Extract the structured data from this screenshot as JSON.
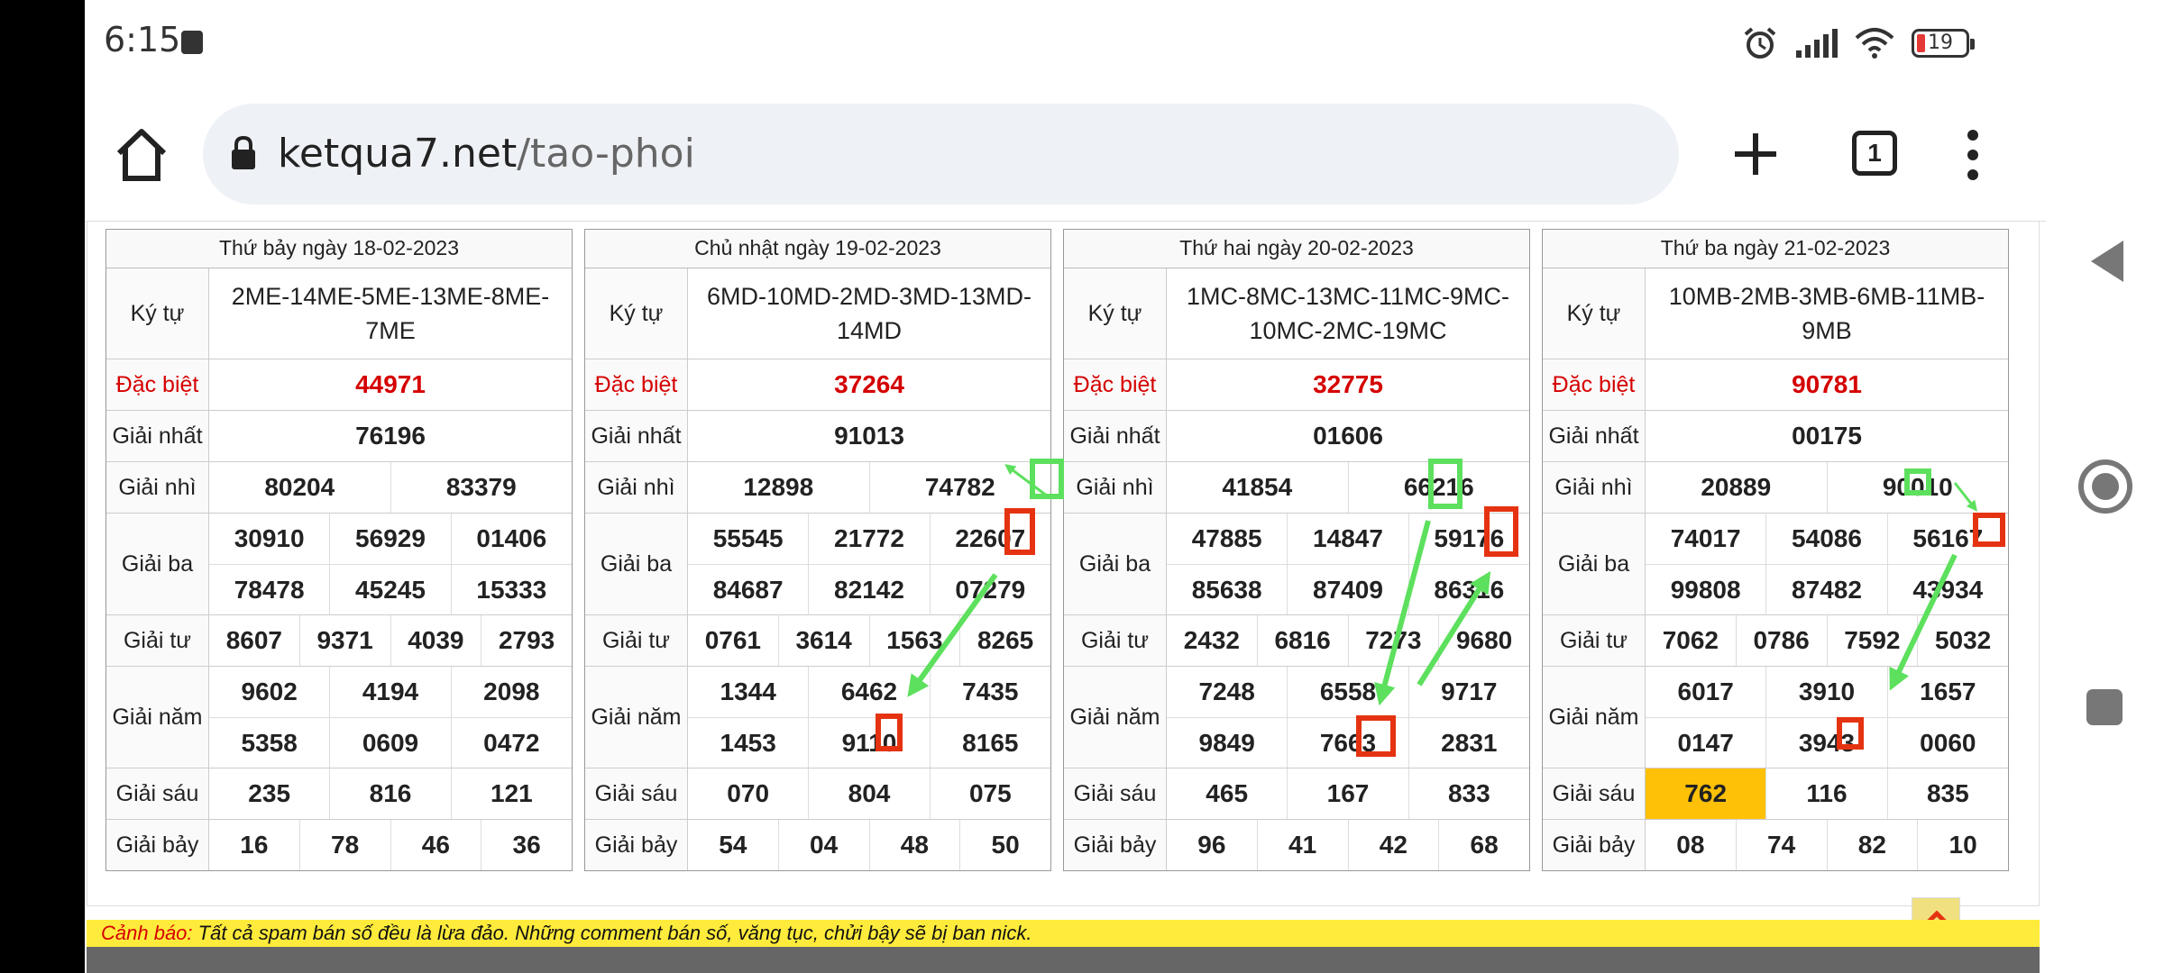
{
  "status": {
    "time": "6:15",
    "battery": "19"
  },
  "browser": {
    "url_domain": "ketqua7.net",
    "url_path": "/tao-phoi",
    "tab_count": "1"
  },
  "labels": {
    "code": "Ký tự",
    "special": "Đặc biệt",
    "first": "Giải nhất",
    "second": "Giải nhì",
    "third": "Giải ba",
    "fourth": "Giải tư",
    "fifth": "Giải năm",
    "sixth": "Giải sáu",
    "seventh": "Giải bảy"
  },
  "tables": [
    {
      "date": "Thứ bảy ngày 18-02-2023",
      "code": "2ME-14ME-5ME-13ME-8ME-7ME",
      "special": "44971",
      "first": "76196",
      "second": [
        "80204",
        "83379"
      ],
      "third": [
        "30910",
        "56929",
        "01406",
        "78478",
        "45245",
        "15333"
      ],
      "fourth": [
        "8607",
        "9371",
        "4039",
        "2793"
      ],
      "fifth": [
        "9602",
        "4194",
        "2098",
        "5358",
        "0609",
        "0472"
      ],
      "sixth": [
        "235",
        "816",
        "121"
      ],
      "seventh": [
        "16",
        "78",
        "46",
        "36"
      ]
    },
    {
      "date": "Chủ nhật ngày 19-02-2023",
      "code": "6MD-10MD-2MD-3MD-13MD-14MD",
      "special": "37264",
      "first": "91013",
      "second": [
        "12898",
        "74782"
      ],
      "third": [
        "55545",
        "21772",
        "22607",
        "84687",
        "82142",
        "07279"
      ],
      "fourth": [
        "0761",
        "3614",
        "1563",
        "8265"
      ],
      "fifth": [
        "1344",
        "6462",
        "7435",
        "1453",
        "9110",
        "8165"
      ],
      "sixth": [
        "070",
        "804",
        "075"
      ],
      "seventh": [
        "54",
        "04",
        "48",
        "50"
      ]
    },
    {
      "date": "Thứ hai ngày 20-02-2023",
      "code": "1MC-8MC-13MC-11MC-9MC-10MC-2MC-19MC",
      "special": "32775",
      "first": "01606",
      "second": [
        "41854",
        "66216"
      ],
      "third": [
        "47885",
        "14847",
        "59176",
        "85638",
        "87409",
        "86316"
      ],
      "fourth": [
        "2432",
        "6816",
        "7273",
        "9680"
      ],
      "fifth": [
        "7248",
        "6558",
        "9717",
        "9849",
        "7663",
        "2831"
      ],
      "sixth": [
        "465",
        "167",
        "833"
      ],
      "seventh": [
        "96",
        "41",
        "42",
        "68"
      ]
    },
    {
      "date": "Thứ ba ngày 21-02-2023",
      "code": "10MB-2MB-3MB-6MB-11MB-9MB",
      "special": "90781",
      "first": "00175",
      "second": [
        "20889",
        "90010"
      ],
      "third": [
        "74017",
        "54086",
        "56167",
        "99808",
        "87482",
        "43934"
      ],
      "fourth": [
        "7062",
        "0786",
        "7592",
        "5032"
      ],
      "fifth": [
        "6017",
        "3910",
        "1657",
        "0147",
        "3943",
        "0060"
      ],
      "sixth": [
        "762",
        "116",
        "835"
      ],
      "seventh": [
        "08",
        "74",
        "82",
        "10"
      ]
    }
  ],
  "warning": {
    "title": "Cảnh báo:",
    "text": " Tất cả spam bán số đều là lừa đảo. Những comment bán số, văng tục, chửi bậy sẽ bị ban nick."
  },
  "colors": {
    "special": "#d50000",
    "highlight": "#ffc107",
    "mark_green": "#5de05d",
    "mark_red": "#e53311"
  },
  "icons": [
    "home-icon",
    "lock-icon",
    "plus-icon",
    "tab-switcher-icon",
    "overflow-menu-icon",
    "alarm-icon",
    "signal-icon",
    "wifi-icon",
    "battery-icon",
    "back-icon",
    "nav-home-icon",
    "recents-icon",
    "chevron-up-icon"
  ]
}
